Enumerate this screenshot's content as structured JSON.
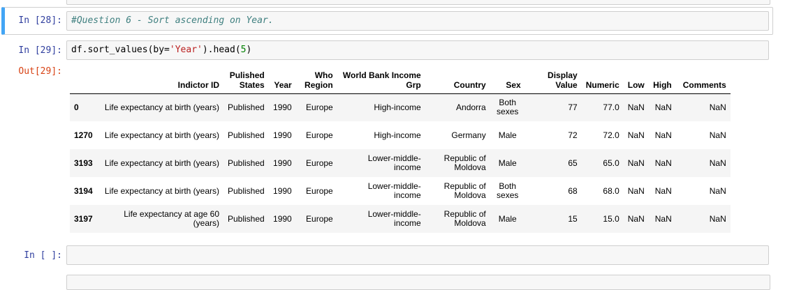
{
  "cells": {
    "q6": {
      "prompt": "In [28]:",
      "code": "#Question 6 - Sort ascending on Year."
    },
    "sort": {
      "prompt": "In [29]:",
      "code": {
        "p1": "df.sort_values(by=",
        "str": "'Year'",
        "p2": ").head(",
        "num": "5",
        "p3": ")"
      },
      "out_prompt": "Out[29]:"
    },
    "empty": {
      "prompt": "In [ ]:"
    }
  },
  "table": {
    "headers": [
      "Indictor ID",
      "Pulished States",
      "Year",
      "Who Region",
      "World Bank Income Grp",
      "Country",
      "Sex",
      "Display Value",
      "Numeric",
      "Low",
      "High",
      "Comments"
    ],
    "rows": [
      {
        "index": "0",
        "cells": [
          "Life expectancy at birth (years)",
          "Published",
          "1990",
          "Europe",
          "High-income",
          "Andorra",
          "Both sexes",
          "77",
          "77.0",
          "NaN",
          "NaN",
          "NaN"
        ]
      },
      {
        "index": "1270",
        "cells": [
          "Life expectancy at birth (years)",
          "Published",
          "1990",
          "Europe",
          "High-income",
          "Germany",
          "Male",
          "72",
          "72.0",
          "NaN",
          "NaN",
          "NaN"
        ]
      },
      {
        "index": "3193",
        "cells": [
          "Life expectancy at birth (years)",
          "Published",
          "1990",
          "Europe",
          "Lower-middle-income",
          "Republic of Moldova",
          "Male",
          "65",
          "65.0",
          "NaN",
          "NaN",
          "NaN"
        ]
      },
      {
        "index": "3194",
        "cells": [
          "Life expectancy at birth (years)",
          "Published",
          "1990",
          "Europe",
          "Lower-middle-income",
          "Republic of Moldova",
          "Both sexes",
          "68",
          "68.0",
          "NaN",
          "NaN",
          "NaN"
        ]
      },
      {
        "index": "3197",
        "cells": [
          "Life expectancy at age 60 (years)",
          "Published",
          "1990",
          "Europe",
          "Lower-middle-income",
          "Republic of Moldova",
          "Male",
          "15",
          "15.0",
          "NaN",
          "NaN",
          "NaN"
        ]
      }
    ]
  }
}
